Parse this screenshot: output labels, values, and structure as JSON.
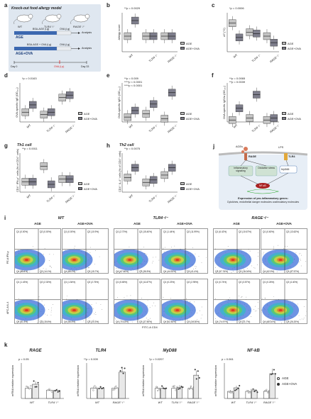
{
  "colors": {
    "age": "#c4c4c4",
    "age_ova": "#7e7e8c",
    "wt_fill": "#b8cde0",
    "ova_red": "#d22",
    "age_blue": "#3c68b0"
  },
  "panel_a": {
    "letter": "a",
    "title": "Knock-out food allergy model",
    "mice": [
      "WT",
      "TLR4⁻/⁻",
      "RAGE⁻/⁻"
    ],
    "row1_label": "AGE",
    "row1_desc": "BSA-AGE (i.g)",
    "row1_ova": "OVA (i.g)",
    "row1_end": "Analysis",
    "row2_label": "AGE+OVA",
    "row2_desc": "BSA-AGE + OVA (i.g)",
    "row2_ova": "OVA (i.g)",
    "row2_end": "Analysis",
    "day0": "Day 0",
    "day_ova": "OVA (i.p)",
    "day33": "Day 33"
  },
  "panel_b": {
    "letter": "b",
    "ylabel": "Allergy score",
    "pval": "**p = 0.0029",
    "groups": [
      "WT",
      "TLR4⁻/⁻",
      "RAGE⁻/⁻"
    ],
    "legend": [
      "AGE",
      "AGE+OVA"
    ]
  },
  "panel_c": {
    "letter": "c",
    "ylabel": "ΔT (°C)",
    "pval": "*p = 0.0006",
    "groups": [
      "WT",
      "TLR4⁻/⁻",
      "RAGE⁻/⁻"
    ],
    "legend": [
      "AGE",
      "AGE+OVA"
    ]
  },
  "panel_d": {
    "letter": "d",
    "ylabel": "OVA-specific IgE (OD₄₅₀)",
    "pval": "*p = 0.0163",
    "groups": [
      "WT",
      "TLR4⁻/⁻",
      "RAGE⁻/⁻"
    ],
    "legend": [
      "AGE",
      "AGE+OVA"
    ]
  },
  "panel_e": {
    "letter": "e",
    "ylabel": "OVA-specific IgG1 (OD₄₅₀)",
    "pvals": [
      "**p = 0.009",
      "****p < 0.0001",
      "****p < 0.0001"
    ],
    "groups": [
      "WT",
      "TLR4⁻/⁻",
      "RAGE⁻/⁻"
    ],
    "legend": [
      "AGE",
      "AGE+OVA"
    ]
  },
  "panel_f": {
    "letter": "f",
    "ylabel": "OVA-specific IgG2a (OD₄₅₀)",
    "pvals": [
      "**p = 0.0065",
      "**p = 0.0039"
    ],
    "groups": [
      "WT",
      "TLR4⁻/⁻",
      "RAGE⁻/⁻"
    ],
    "legend": [
      "AGE",
      "AGE+OVA"
    ]
  },
  "panel_g": {
    "letter": "g",
    "title": "Th1 cell",
    "ylabel": "CD4⁺ IFN-γ⁺ cells (% of CD4⁺ cells)",
    "pval": "**p = 0.0011",
    "groups": [
      "WT",
      "TLR4⁻/⁻",
      "RAGE⁻/⁻"
    ],
    "legend": [
      "AGE",
      "AGE+OVA"
    ]
  },
  "panel_h": {
    "letter": "h",
    "title": "Th2 cell",
    "ylabel": "CD4⁺ IL-4⁺ cells (% of CD4⁺ cells)",
    "pval": "**p = 0.0075",
    "groups": [
      "WT",
      "TLR4⁻/⁻",
      "RAGE⁻/⁻"
    ],
    "legend": [
      "AGE",
      "AGE+OVA"
    ]
  },
  "panel_j": {
    "letter": "j",
    "ages": "AGEs",
    "lps": "LPS",
    "rage": "RAGE",
    "tlr4": "TLR4",
    "infl": "Inflammatory signaling",
    "ox": "Oxidative stress",
    "myd88": "MyD88",
    "nfkb": "NF-κB",
    "expr_title": "Expression of pro-inflammatory genes:",
    "expr_body": "Cytokines, endothelial danger molecules costimulatory molecules"
  },
  "panel_i": {
    "letter": "i",
    "groups": [
      "WT",
      "TLR4⁻/⁻",
      "RAGE⁻/⁻"
    ],
    "sub": [
      "AGE",
      "AGE+OVA"
    ],
    "row1_y": "PE-A IFN-γ",
    "row2_y": "APC-A IL-4",
    "xaxis": "FITC-A CD4",
    "row1_q": [
      [
        "Q1 (0.00%)",
        "Q2 (0.00%)",
        "Q4 (85.4%)",
        "Q3 (14.1%)"
      ],
      [
        "Q1 (0.00%)",
        "Q2 (10.9%)",
        "Q4 (85.0%)",
        "Q3 (15.7%)"
      ],
      [
        "Q1 (2.70%)",
        "Q2 (15.40%)",
        "Q4 (47.60%)",
        "Q3 (36.5%)"
      ],
      [
        "Q1 (1.44%)",
        "Q2 (11.99%)",
        "Q4 (44.92%)",
        "Q3 (41.4%)"
      ],
      [
        "Q1 (6.42%)",
        "Q2 (10.67%)",
        "Q4 (57.76%)",
        "Q3 (16.04%)"
      ],
      [
        "Q1 (0.60%)",
        "Q2 (13.62%)",
        "Q4 (62.9%)",
        "Q3 (37.57%)"
      ]
    ],
    "row2_q": [
      [
        "Q1 (1.43%)",
        "Q2 (2.30%)",
        "Q4 (81.5%)",
        "Q3 (15.6%)"
      ],
      [
        "Q1 (1.54%)",
        "Q2 (2.76%)",
        "Q4 (56.5%)",
        "Q3 (20.3%)"
      ],
      [
        "Q1 (5.65%)",
        "Q2 (11.87%)",
        "Q4 (70.43%)",
        "Q3 (27.50%)"
      ],
      [
        "Q1 (0.23%)",
        "Q2 (2.95%)",
        "Q4 (62.46%)",
        "Q3 (34.30%)"
      ],
      [
        "Q1 (0.74%)",
        "Q2 (3.57%)",
        "Q4 (74.97%)",
        "Q3 (21.7%)"
      ],
      [
        "Q1 (0.26%)",
        "Q2 (4.40%)",
        "Q4 (65.10%)",
        "Q3 (26.20%)"
      ]
    ]
  },
  "panel_k": {
    "letter": "k",
    "ylabel": "mRNA relative expression",
    "legend": [
      "AGE",
      "AGE+OVA"
    ],
    "charts": [
      {
        "title": "RAGE",
        "pval": "p = 0.05",
        "groups": [
          "WT",
          "TLR4⁻/⁻"
        ]
      },
      {
        "title": "TLR4",
        "pval": "**p = 0.009",
        "groups": [
          "WT",
          "RAGE⁻/⁻"
        ]
      },
      {
        "title": "MyD88",
        "pval": "*p = 0.0207",
        "groups": [
          "WT",
          "TLR4⁻/⁻",
          "RAGE⁻/⁻"
        ]
      },
      {
        "title": "NF-kB",
        "pval": "p = 0.061",
        "groups": [
          "WT",
          "TLR4⁻/⁻",
          "RAGE⁻/⁻"
        ]
      }
    ]
  },
  "chart_data": [
    {
      "panel": "b",
      "type": "box",
      "groups": [
        "WT",
        "TLR4⁻/⁻",
        "RAGE⁻/⁻"
      ],
      "series": [
        {
          "name": "AGE",
          "values": [
            2,
            2,
            2
          ]
        },
        {
          "name": "AGE+OVA",
          "values": [
            4,
            2,
            2
          ]
        }
      ]
    },
    {
      "panel": "c",
      "type": "box",
      "groups": [
        "WT",
        "TLR4⁻/⁻",
        "RAGE⁻/⁻"
      ],
      "series": [
        {
          "name": "AGE",
          "values": [
            1.2,
            0.5,
            0.2
          ]
        },
        {
          "name": "AGE+OVA",
          "values": [
            0.1,
            0.4,
            -0.3
          ]
        }
      ]
    },
    {
      "panel": "d",
      "type": "box",
      "groups": [
        "WT",
        "TLR4⁻/⁻",
        "RAGE⁻/⁻"
      ],
      "series": [
        {
          "name": "AGE",
          "values": [
            0.2,
            0.15,
            0.5
          ]
        },
        {
          "name": "AGE+OVA",
          "values": [
            0.35,
            0.2,
            0.55
          ]
        }
      ]
    },
    {
      "panel": "e",
      "type": "box",
      "groups": [
        "WT",
        "TLR4⁻/⁻",
        "RAGE⁻/⁻"
      ],
      "series": [
        {
          "name": "AGE",
          "values": [
            0.15,
            0.25,
            0.1
          ]
        },
        {
          "name": "AGE+OVA",
          "values": [
            0.35,
            0.55,
            0.9
          ]
        }
      ]
    },
    {
      "panel": "f",
      "type": "box",
      "groups": [
        "WT",
        "TLR4⁻/⁻",
        "RAGE⁻/⁻"
      ],
      "series": [
        {
          "name": "AGE",
          "values": [
            0.05,
            0.1,
            0.05
          ]
        },
        {
          "name": "AGE+OVA",
          "values": [
            0.35,
            0.7,
            0.1
          ]
        }
      ]
    },
    {
      "panel": "g",
      "type": "box",
      "groups": [
        "WT",
        "TLR4⁻/⁻",
        "RAGE⁻/⁻"
      ],
      "series": [
        {
          "name": "AGE",
          "values": [
            8,
            20,
            10
          ]
        },
        {
          "name": "AGE+OVA",
          "values": [
            8,
            6,
            10
          ]
        }
      ]
    },
    {
      "panel": "h",
      "type": "box",
      "groups": [
        "WT",
        "TLR4⁻/⁻",
        "RAGE⁻/⁻"
      ],
      "series": [
        {
          "name": "AGE",
          "values": [
            3,
            2,
            3.5
          ]
        },
        {
          "name": "AGE+OVA",
          "values": [
            5,
            2.5,
            5
          ]
        }
      ]
    },
    {
      "panel": "k-RAGE",
      "type": "bar",
      "groups": [
        "WT",
        "TLR4⁻/⁻"
      ],
      "series": [
        {
          "name": "AGE",
          "values": [
            1.0,
            0.8
          ]
        },
        {
          "name": "AGE+OVA",
          "values": [
            1.4,
            0.8
          ]
        }
      ]
    },
    {
      "panel": "k-TLR4",
      "type": "bar",
      "groups": [
        "WT",
        "RAGE⁻/⁻"
      ],
      "series": [
        {
          "name": "AGE",
          "values": [
            1.0,
            1.0
          ]
        },
        {
          "name": "AGE+OVA",
          "values": [
            1.0,
            2.6
          ]
        }
      ]
    },
    {
      "panel": "k-MyD88",
      "type": "bar",
      "groups": [
        "WT",
        "TLR4⁻/⁻",
        "RAGE⁻/⁻"
      ],
      "series": [
        {
          "name": "AGE",
          "values": [
            1.0,
            1.0,
            1.0
          ]
        },
        {
          "name": "AGE+OVA",
          "values": [
            1.0,
            1.1,
            2.3
          ]
        }
      ]
    },
    {
      "panel": "k-NF-kB",
      "type": "bar",
      "groups": [
        "WT",
        "TLR4⁻/⁻",
        "RAGE⁻/⁻"
      ],
      "series": [
        {
          "name": "AGE",
          "values": [
            1.0,
            1.0,
            1.0
          ]
        },
        {
          "name": "AGE+OVA",
          "values": [
            1.5,
            1.1,
            3.5
          ]
        }
      ]
    }
  ]
}
